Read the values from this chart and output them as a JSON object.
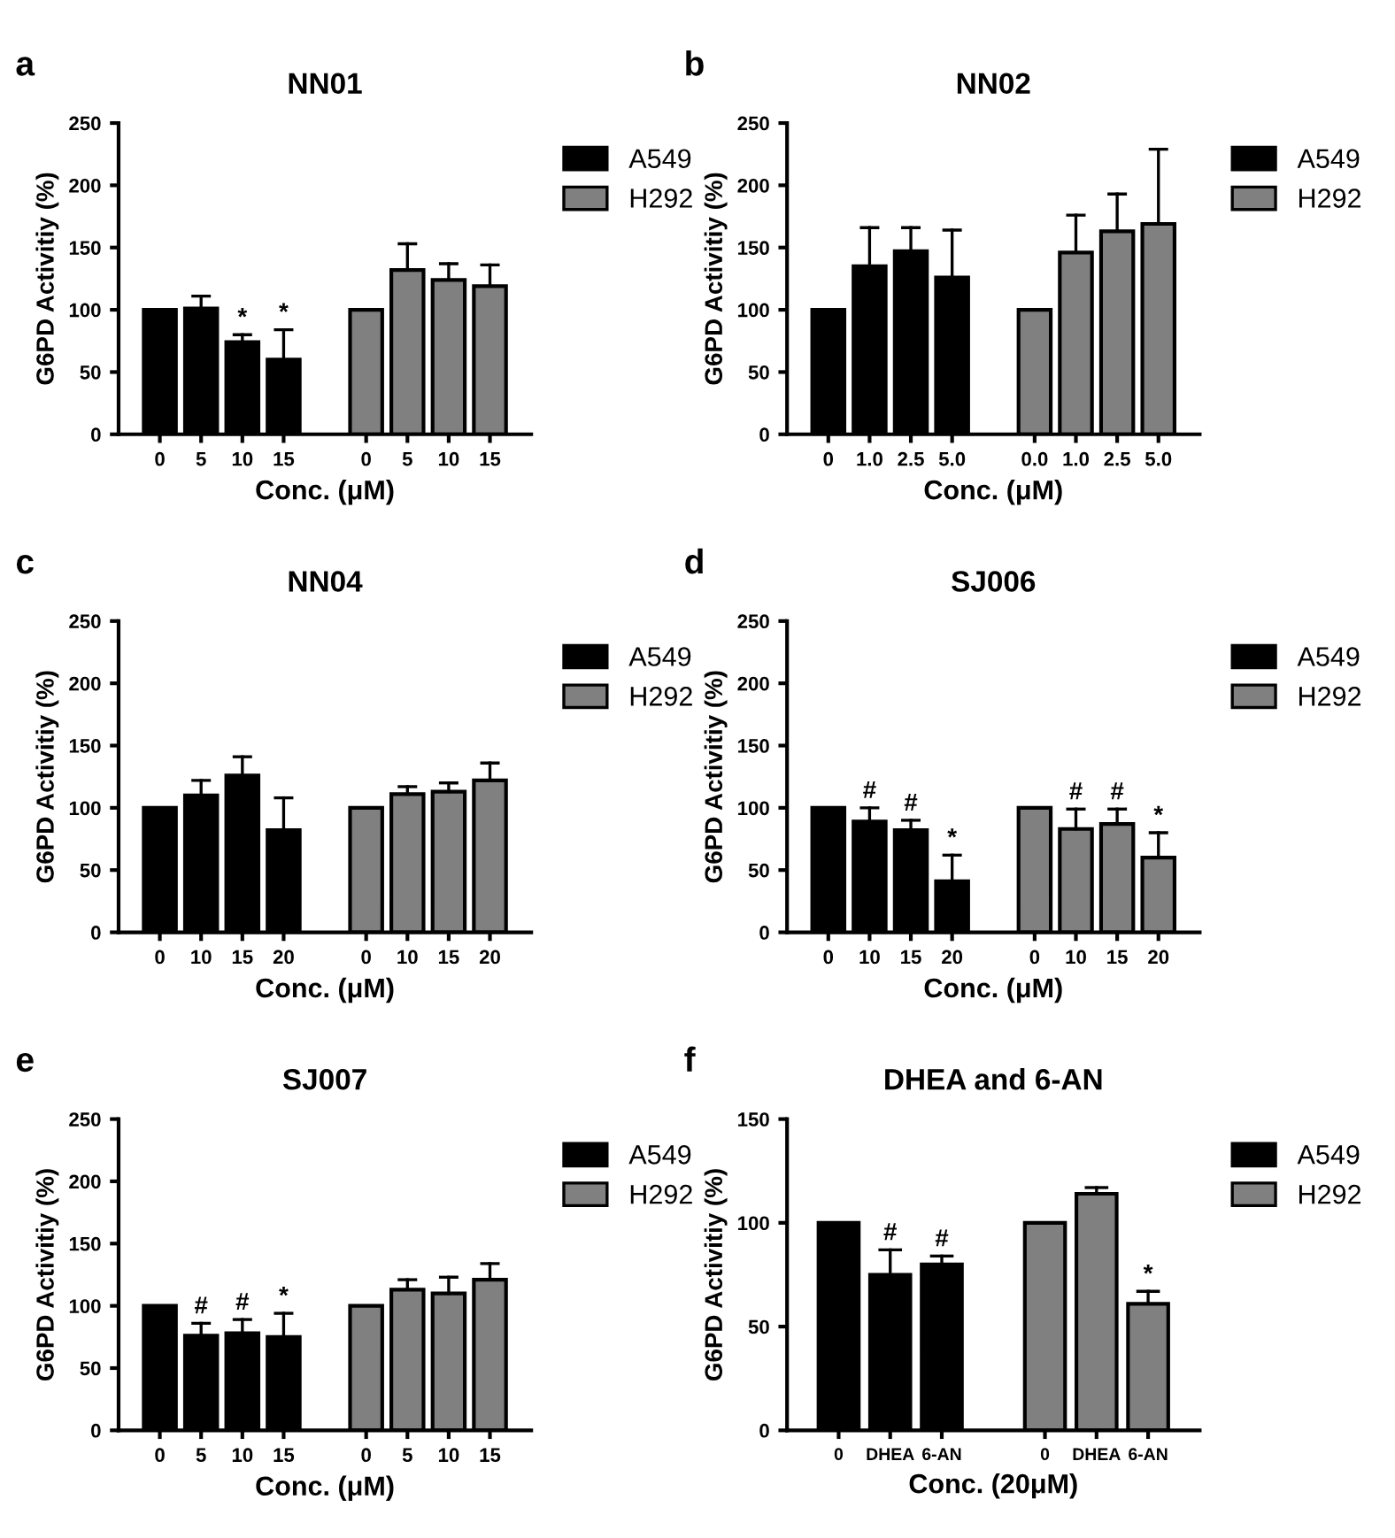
{
  "chart_data": [
    {
      "type": "bar",
      "title": "NN01",
      "annotations": [
        "a"
      ],
      "xlabel": "Conc. (μM)",
      "ylabel": "G6PD Activitiy (%)",
      "ylim": [
        0,
        250
      ],
      "yticks": [
        0,
        50,
        100,
        150,
        200,
        250
      ],
      "legend": "top right",
      "categories": [
        "0",
        "5",
        "10",
        "15",
        null,
        "0",
        "5",
        "10",
        "15"
      ],
      "series": [
        {
          "name": "A549",
          "color": "#000000",
          "values": [
            100,
            101,
            74,
            60,
            null,
            null,
            null,
            null,
            null
          ],
          "errors": [
            null,
            [
              101,
              111
            ],
            [
              74,
              80
            ],
            [
              60,
              84
            ],
            null,
            null,
            null,
            null,
            null
          ],
          "value_labels": [
            null,
            null,
            "*",
            "*",
            null,
            null,
            null,
            null,
            null
          ]
        },
        {
          "name": "H292",
          "color": "#808080",
          "values": [
            null,
            null,
            null,
            null,
            null,
            100,
            132,
            124,
            119
          ],
          "errors": [
            null,
            null,
            null,
            null,
            null,
            null,
            [
              132,
              153
            ],
            [
              124,
              137
            ],
            [
              119,
              136
            ]
          ]
        }
      ]
    },
    {
      "type": "bar",
      "title": "NN02",
      "annotations": [
        "b"
      ],
      "xlabel": "Conc. (μM)",
      "ylabel": "G6PD Activitiy (%)",
      "ylim": [
        0,
        250
      ],
      "yticks": [
        0,
        50,
        100,
        150,
        200,
        250
      ],
      "legend": "top right",
      "categories": [
        "0",
        "1.0",
        "2.5",
        "5.0",
        null,
        "0.0",
        "1.0",
        "2.5",
        "5.0"
      ],
      "series": [
        {
          "name": "A549",
          "color": "#000000",
          "values": [
            100,
            135,
            147,
            126,
            null,
            null,
            null,
            null,
            null
          ],
          "errors": [
            null,
            [
              135,
              166
            ],
            [
              147,
              166
            ],
            [
              126,
              164
            ],
            null,
            null,
            null,
            null,
            null
          ]
        },
        {
          "name": "H292",
          "color": "#808080",
          "values": [
            null,
            null,
            null,
            null,
            null,
            100,
            146,
            163,
            169
          ],
          "errors": [
            null,
            null,
            null,
            null,
            null,
            null,
            [
              146,
              176
            ],
            [
              163,
              193
            ],
            [
              169,
              229
            ]
          ]
        }
      ]
    },
    {
      "type": "bar",
      "title": "NN04",
      "annotations": [
        "c"
      ],
      "xlabel": "Conc. (μM)",
      "ylabel": "G6PD Activitiy (%)",
      "ylim": [
        0,
        250
      ],
      "yticks": [
        0,
        50,
        100,
        150,
        200,
        250
      ],
      "legend": "top right",
      "categories": [
        "0",
        "10",
        "15",
        "20",
        null,
        "0",
        "10",
        "15",
        "20"
      ],
      "series": [
        {
          "name": "A549",
          "color": "#000000",
          "values": [
            100,
            110,
            126,
            82,
            null,
            null,
            null,
            null,
            null
          ],
          "errors": [
            null,
            [
              110,
              122
            ],
            [
              126,
              141
            ],
            [
              82,
              108
            ],
            null,
            null,
            null,
            null,
            null
          ]
        },
        {
          "name": "H292",
          "color": "#808080",
          "values": [
            null,
            null,
            null,
            null,
            null,
            100,
            111,
            113,
            122
          ],
          "errors": [
            null,
            null,
            null,
            null,
            null,
            null,
            [
              111,
              117
            ],
            [
              113,
              120
            ],
            [
              122,
              136
            ]
          ]
        }
      ]
    },
    {
      "type": "bar",
      "title": "SJ006",
      "annotations": [
        "d"
      ],
      "xlabel": "Conc. (μM)",
      "ylabel": "G6PD Activitiy (%)",
      "ylim": [
        0,
        250
      ],
      "yticks": [
        0,
        50,
        100,
        150,
        200,
        250
      ],
      "legend": "top right",
      "categories": [
        "0",
        "10",
        "15",
        "20",
        null,
        "0",
        "10",
        "15",
        "20"
      ],
      "series": [
        {
          "name": "A549",
          "color": "#000000",
          "values": [
            100,
            89,
            82,
            41,
            null,
            null,
            null,
            null,
            null
          ],
          "errors": [
            null,
            [
              89,
              100
            ],
            [
              82,
              90
            ],
            [
              41,
              62
            ],
            null,
            null,
            null,
            null,
            null
          ],
          "value_labels": [
            null,
            "#",
            "#",
            "*",
            null,
            null,
            null,
            null,
            null
          ]
        },
        {
          "name": "H292",
          "color": "#808080",
          "values": [
            null,
            null,
            null,
            null,
            null,
            100,
            83,
            87,
            60
          ],
          "errors": [
            null,
            null,
            null,
            null,
            null,
            null,
            [
              83,
              99
            ],
            [
              87,
              99
            ],
            [
              60,
              80
            ]
          ],
          "value_labels": [
            null,
            null,
            null,
            null,
            null,
            null,
            "#",
            "#",
            "*"
          ]
        }
      ]
    },
    {
      "type": "bar",
      "title": "SJ007",
      "annotations": [
        "e"
      ],
      "xlabel": "Conc. (μM)",
      "ylabel": "G6PD Activitiy (%)",
      "ylim": [
        0,
        250
      ],
      "yticks": [
        0,
        50,
        100,
        150,
        200,
        250
      ],
      "legend": "top right",
      "categories": [
        "0",
        "5",
        "10",
        "15",
        null,
        "0",
        "5",
        "10",
        "15"
      ],
      "series": [
        {
          "name": "A549",
          "color": "#000000",
          "values": [
            100,
            76,
            78,
            75,
            null,
            null,
            null,
            null,
            null
          ],
          "errors": [
            null,
            [
              76,
              86
            ],
            [
              78,
              89
            ],
            [
              75,
              94
            ],
            null,
            null,
            null,
            null,
            null
          ],
          "value_labels": [
            null,
            "#",
            "#",
            "*",
            null,
            null,
            null,
            null,
            null
          ]
        },
        {
          "name": "H292",
          "color": "#808080",
          "values": [
            null,
            null,
            null,
            null,
            null,
            100,
            113,
            110,
            121
          ],
          "errors": [
            null,
            null,
            null,
            null,
            null,
            null,
            [
              113,
              121
            ],
            [
              110,
              123
            ],
            [
              121,
              134
            ]
          ]
        }
      ]
    },
    {
      "type": "bar",
      "title": "DHEA and 6-AN",
      "annotations": [
        "f"
      ],
      "xlabel": "Conc. (20μM)",
      "ylabel": "G6PD Activitiy (%)",
      "ylim": [
        0,
        150
      ],
      "yticks": [
        0,
        50,
        100,
        150
      ],
      "legend": "top right",
      "categories": [
        "0",
        "DHEA",
        "6-AN",
        null,
        "0",
        "DHEA",
        "6-AN"
      ],
      "series": [
        {
          "name": "A549",
          "color": "#000000",
          "values": [
            100,
            75,
            80,
            null,
            null,
            null,
            null
          ],
          "errors": [
            null,
            [
              75,
              87
            ],
            [
              80,
              84
            ],
            null,
            null,
            null,
            null
          ],
          "value_labels": [
            null,
            "#",
            "#",
            null,
            null,
            null,
            null
          ]
        },
        {
          "name": "H292",
          "color": "#808080",
          "values": [
            null,
            null,
            null,
            null,
            100,
            114,
            61
          ],
          "errors": [
            null,
            null,
            null,
            null,
            null,
            [
              114,
              117
            ],
            [
              61,
              67
            ]
          ],
          "value_labels": [
            null,
            null,
            null,
            null,
            null,
            null,
            "*"
          ]
        }
      ]
    }
  ]
}
